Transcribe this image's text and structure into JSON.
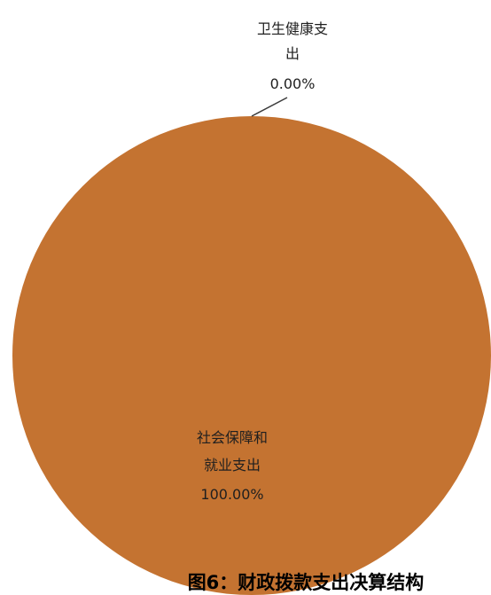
{
  "chart_data": {
    "type": "pie",
    "slices": [
      {
        "name_lines": [
          "卫生健康支",
          "出"
        ],
        "percent_label": "0.00%",
        "value": 0.0
      },
      {
        "name_lines": [
          "社会保障和",
          "就业支出"
        ],
        "percent_label": "100.00%",
        "value": 100.0
      }
    ],
    "colors": {
      "slice": "#C47331",
      "text": "#1f1f1f",
      "leader": "#3a3a3a"
    },
    "caption": "图6：财政拨款支出决算结构"
  }
}
